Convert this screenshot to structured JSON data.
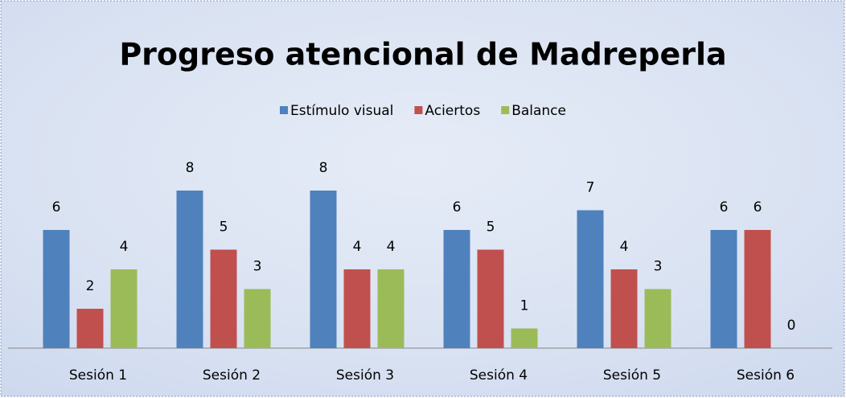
{
  "chart_data": {
    "type": "bar",
    "title": "Progreso atencional de Madreperla",
    "categories": [
      "Sesión 1",
      "Sesión 2",
      "Sesión 3",
      "Sesión 4",
      "Sesión 5",
      "Sesión 6"
    ],
    "series": [
      {
        "name": "Estímulo visual",
        "color": "#4f81bd",
        "values": [
          6,
          8,
          8,
          6,
          7,
          6
        ]
      },
      {
        "name": "Aciertos",
        "color": "#c0504d",
        "values": [
          2,
          5,
          4,
          5,
          4,
          6
        ]
      },
      {
        "name": "Balance",
        "color": "#9bbb59",
        "values": [
          4,
          3,
          4,
          1,
          3,
          0
        ]
      }
    ],
    "legend": "top"
  }
}
